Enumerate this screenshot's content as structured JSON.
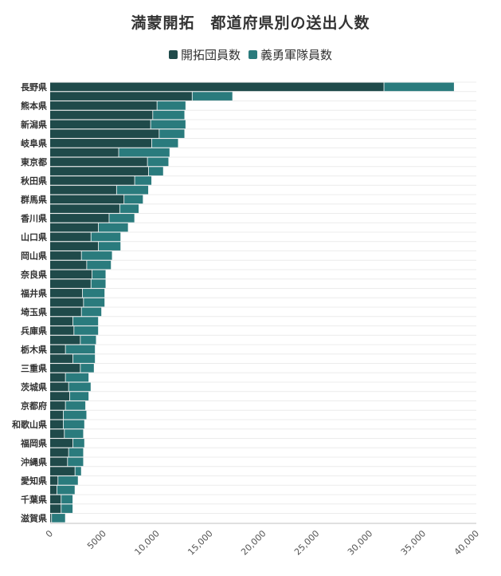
{
  "chart_data": {
    "type": "bar",
    "orientation": "horizontal",
    "stacked": true,
    "title": "満蒙開拓　都道府県別の送出人数",
    "xlabel": "",
    "ylabel": "",
    "xlim": [
      0,
      40000
    ],
    "x_ticks": [
      "0",
      "5000",
      "10,000",
      "15,000",
      "20,000",
      "25,000",
      "30,000",
      "35,000",
      "40,000"
    ],
    "grid": true,
    "legend_position": "top",
    "categories": [
      "長野県",
      "",
      "熊本県",
      "",
      "新潟県",
      "",
      "岐阜県",
      "",
      "東京都",
      "",
      "秋田県",
      "",
      "群馬県",
      "",
      "香川県",
      "",
      "山口県",
      "",
      "岡山県",
      "",
      "奈良県",
      "",
      "福井県",
      "",
      "埼玉県",
      "",
      "兵庫県",
      "",
      "栃木県",
      "",
      "三重県",
      "",
      "茨城県",
      "",
      "京都府",
      "",
      "和歌山県",
      "",
      "福岡県",
      "",
      "沖縄県",
      "",
      "愛知県",
      "",
      "千葉県",
      "",
      "滋賀県"
    ],
    "series": [
      {
        "name": "開拓団員数",
        "color": "#1f4a4a",
        "values": [
          31300,
          13300,
          10000,
          9600,
          9400,
          10200,
          9500,
          6400,
          9100,
          9200,
          7900,
          6200,
          6900,
          6500,
          5500,
          4500,
          3800,
          4500,
          2900,
          3400,
          3900,
          3800,
          3000,
          3100,
          2900,
          2100,
          2200,
          2800,
          1400,
          2100,
          2800,
          1400,
          1700,
          1800,
          1400,
          1200,
          1200,
          1300,
          2100,
          1700,
          1600,
          2300,
          700,
          600,
          1000,
          1000,
          100
        ],
        "labels": []
      },
      {
        "name": "義勇軍隊員数",
        "color": "#2a7b7d",
        "values": [
          6600,
          3800,
          2700,
          3000,
          3300,
          2400,
          2500,
          4800,
          2000,
          1400,
          1600,
          3000,
          1800,
          1800,
          2400,
          2800,
          2800,
          2100,
          2900,
          2300,
          1300,
          1400,
          2100,
          2000,
          1900,
          2400,
          2300,
          1500,
          2800,
          2100,
          1300,
          2200,
          2100,
          1800,
          1900,
          2200,
          2000,
          1800,
          1100,
          1400,
          1500,
          600,
          1900,
          1700,
          1100,
          1100,
          1300
        ]
      }
    ]
  }
}
